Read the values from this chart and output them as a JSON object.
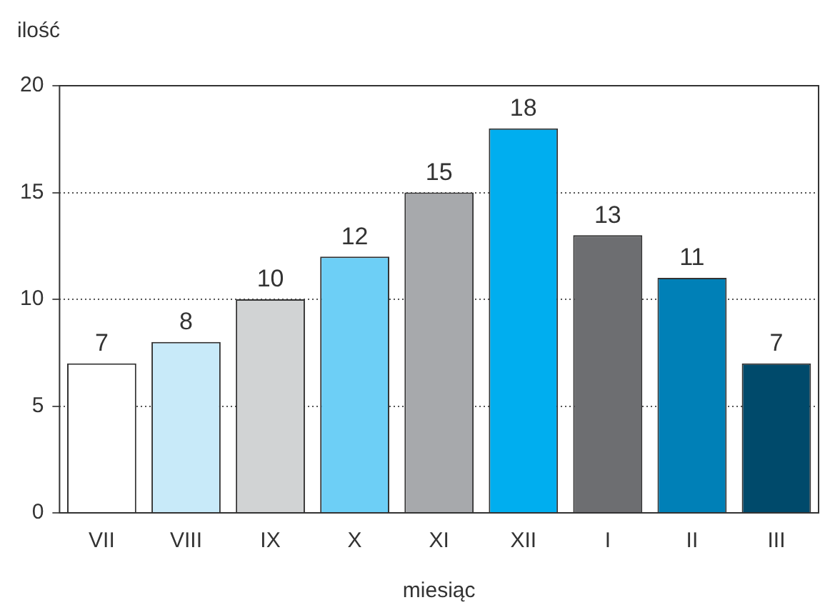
{
  "chart_data": {
    "type": "bar",
    "ylabel": "ilość",
    "xlabel": "miesiąc",
    "categories": [
      "VII",
      "VIII",
      "IX",
      "X",
      "XI",
      "XII",
      "I",
      "II",
      "III"
    ],
    "values": [
      7,
      8,
      10,
      12,
      15,
      18,
      13,
      11,
      7
    ],
    "colors": [
      "#ffffff",
      "#c8eaf9",
      "#d1d3d4",
      "#6dcff6",
      "#a7a9ac",
      "#00aeef",
      "#6d6e71",
      "#0080b7",
      "#004a6b"
    ],
    "ylim": [
      0,
      20
    ],
    "yticks": [
      0,
      5,
      10,
      15,
      20
    ],
    "grid": "y",
    "data_labels": true,
    "legend": false
  }
}
